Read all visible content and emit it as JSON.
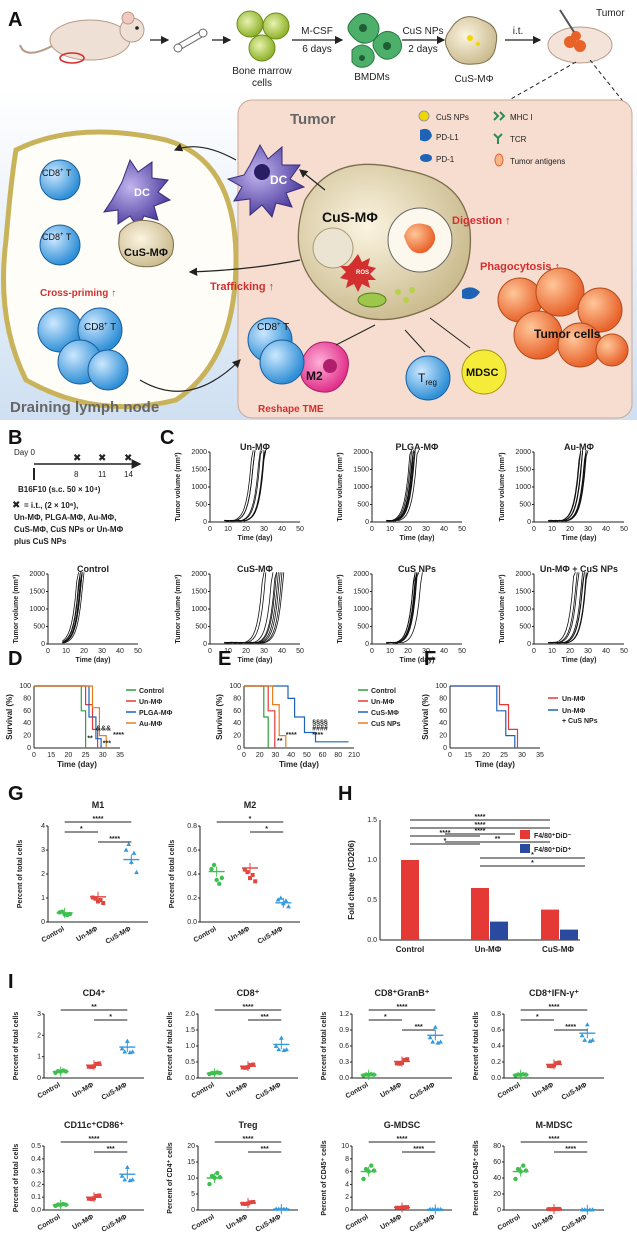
{
  "panelA": {
    "label": "A",
    "flow": [
      "Bone marrow\ncells",
      "BMDMs",
      "CuS-MΦ",
      "Tumor"
    ],
    "arrow1_top": "M-CSF",
    "arrow1_bot": "6 days",
    "arrow2_top": "CuS NPs",
    "arrow2_bot": "2 days",
    "arrow3": "i.t.",
    "tumor_title": "Tumor",
    "legend": [
      "CuS NPs",
      "MHC I",
      "PD-L1",
      "TCR",
      "PD-1",
      "Tumor antigens"
    ],
    "center_cell": "CuS-MΦ",
    "ros": "ROS",
    "digestion": "Digestion ↑",
    "phagocytosis": "Phagocytosis ↑",
    "tumor_cells": "Tumor cells",
    "trafficking": "Trafficking ↑",
    "reshape": "Reshape TME",
    "dc": "DC",
    "m2": "M2",
    "treg": "T",
    "treg_sub": "reg",
    "mdsc": "MDSC",
    "cd8": "CD8",
    "cross_priming": "Cross-priming ↑",
    "lymph_title": "Draining lymph node"
  },
  "panelB": {
    "label": "B",
    "days": [
      "Day 0",
      "8",
      "11",
      "14"
    ],
    "inoc": "B16F10 (s.c. 50 × 10⁴)",
    "note1": "= i.t., (2 × 10⁶),",
    "note2": "Un-MΦ, PLGA-MΦ, Au-MΦ,",
    "note3": "CuS-MΦ, CuS NPs or Un-MΦ",
    "note4": "plus CuS NPs"
  },
  "panelC": {
    "label": "C",
    "ylabel": "Tumor volume (mm³)",
    "xlabel": "Time (day)",
    "titles": [
      "Un-MΦ",
      "PLGA-MΦ",
      "Au-MΦ",
      "Control",
      "CuS-MΦ",
      "CuS NPs",
      "Un-MΦ + CuS NPs"
    ],
    "yticks": [
      "0",
      "500",
      "1000",
      "1500",
      "2000"
    ],
    "xticks": [
      "0",
      "10",
      "20",
      "30",
      "40",
      "50"
    ]
  },
  "panelD": {
    "label": "D",
    "ylabel": "Survival (%)",
    "xlabel": "Time (day)",
    "xticks": [
      "0",
      "15",
      "20",
      "25",
      "30",
      "35"
    ],
    "yticks": [
      "0",
      "20",
      "40",
      "60",
      "80",
      "100"
    ],
    "legend": [
      "Control",
      "Un-MΦ",
      "PLGA-MΦ",
      "Au-MΦ"
    ],
    "colors": [
      "#2e9e3e",
      "#e53935",
      "#1e63b5",
      "#e67e22"
    ],
    "sig": [
      "&&&",
      "****",
      "**",
      "***"
    ]
  },
  "panelE": {
    "label": "E",
    "ylabel": "Survival (%)",
    "xlabel": "Time (day)",
    "xticks": [
      "0",
      "20",
      "30",
      "40",
      "50",
      "60",
      "80",
      "210"
    ],
    "legend": [
      "Control",
      "Un-MΦ",
      "CuS-MΦ",
      "CuS NPs"
    ],
    "colors": [
      "#2e9e3e",
      "#e53935",
      "#1e63b5",
      "#e67e22"
    ],
    "sig": [
      "§§§§",
      "####",
      "****",
      "****",
      "**"
    ]
  },
  "panelF": {
    "label": "F",
    "ylabel": "Survival (%)",
    "xlabel": "Time (day)",
    "xticks": [
      "0",
      "15",
      "20",
      "25",
      "30",
      "35"
    ],
    "legend": [
      "Un-MΦ",
      "Un-MΦ",
      "+ CuS NPs"
    ],
    "colors": [
      "#e53935",
      "#1e63b5"
    ]
  },
  "panelG": {
    "label": "G",
    "ylabel": "Percent of total cells",
    "groups": [
      "Control",
      "Un-MΦ",
      "CuS-MΦ"
    ],
    "M1": {
      "title": "M1",
      "yticks": [
        "0",
        "1",
        "2",
        "3",
        "4"
      ],
      "means": [
        0.38,
        1.05,
        2.6
      ],
      "sig": [
        "****",
        "*",
        "****"
      ]
    },
    "M2": {
      "title": "M2",
      "yticks": [
        "0.0",
        "0.2",
        "0.4",
        "0.6",
        "0.8"
      ],
      "means": [
        0.42,
        0.45,
        0.16
      ],
      "sig": [
        "*",
        "*"
      ]
    }
  },
  "panelH": {
    "label": "H",
    "ylabel": "Fold change (CD206)",
    "yticks": [
      "0.0",
      "0.5",
      "1.0",
      "1.5"
    ],
    "groups": [
      "Control",
      "Un-MΦ",
      "CuS-MΦ"
    ],
    "legend": [
      "F4/80⁺DiD⁻",
      "F4/80⁺DiD⁺"
    ],
    "colors": [
      "#e53935",
      "#2a4aa0"
    ],
    "bars_red": [
      1.0,
      0.65,
      0.38
    ],
    "bars_blue": [
      0.23,
      0.13
    ],
    "sig": [
      "****",
      "****",
      "****",
      "*",
      "****",
      "**",
      "*",
      "*"
    ]
  },
  "panelI": {
    "label": "I",
    "groups": [
      "Control",
      "Un-MΦ",
      "CuS-MΦ"
    ],
    "plots": [
      {
        "title": "CD4⁺",
        "ylabel": "Percent of total cells",
        "yticks": [
          "0",
          "1",
          "2",
          "3"
        ],
        "means": [
          0.3,
          0.6,
          1.45
        ],
        "ymax": 3,
        "sig": [
          "**",
          "*"
        ]
      },
      {
        "title": "CD8⁺",
        "ylabel": "Percent of total cells",
        "yticks": [
          "0.0",
          "0.5",
          "1.0",
          "1.5",
          "2.0"
        ],
        "means": [
          0.15,
          0.37,
          1.05
        ],
        "ymax": 2,
        "sig": [
          "****",
          "***"
        ]
      },
      {
        "title": "CD8⁺GranB⁺",
        "ylabel": "Percent of total cells",
        "yticks": [
          "0.0",
          "0.3",
          "0.6",
          "0.9",
          "1.2"
        ],
        "means": [
          0.06,
          0.31,
          0.8
        ],
        "ymax": 1.2,
        "sig": [
          "****",
          "*",
          "***"
        ]
      },
      {
        "title": "CD8⁺IFN-γ⁺",
        "ylabel": "Percent of total cells",
        "yticks": [
          "0.0",
          "0.2",
          "0.4",
          "0.6",
          "0.8"
        ],
        "means": [
          0.04,
          0.17,
          0.56
        ],
        "ymax": 0.8,
        "sig": [
          "****",
          "*",
          "****"
        ]
      },
      {
        "title": "CD11c⁺CD86⁺",
        "ylabel": "Percent of total cells",
        "yticks": [
          "0.0",
          "0.1",
          "0.2",
          "0.3",
          "0.4",
          "0.5"
        ],
        "means": [
          0.04,
          0.1,
          0.28
        ],
        "ymax": 0.5,
        "sig": [
          "****",
          "***"
        ]
      },
      {
        "title": "T",
        "title_sub": "reg",
        "ylabel": "Percent of CD4⁺ cells",
        "yticks": [
          "0",
          "5",
          "10",
          "15",
          "20"
        ],
        "means": [
          10,
          2.2,
          0.3
        ],
        "ymax": 20,
        "sig": [
          "****",
          "***"
        ]
      },
      {
        "title": "G-MDSC",
        "ylabel": "Percent of CD45⁺ cells",
        "yticks": [
          "0",
          "2",
          "4",
          "6",
          "8",
          "10"
        ],
        "means": [
          6,
          0.4,
          0.1
        ],
        "ymax": 10,
        "sig": [
          "****",
          "****"
        ]
      },
      {
        "title": "M-MDSC",
        "ylabel": "Percent of CD45⁺ cells",
        "yticks": [
          "0",
          "20",
          "40",
          "60",
          "80"
        ],
        "means": [
          48,
          1.2,
          0.3
        ],
        "ymax": 80,
        "sig": [
          "****",
          "****"
        ]
      }
    ]
  },
  "colors": {
    "control": "#39b54a",
    "un": "#e53935",
    "cus": "#1e63b5",
    "green_pts": "#3fbf4f",
    "red_pts": "#e0463f",
    "blue_pts": "#3399dd"
  }
}
